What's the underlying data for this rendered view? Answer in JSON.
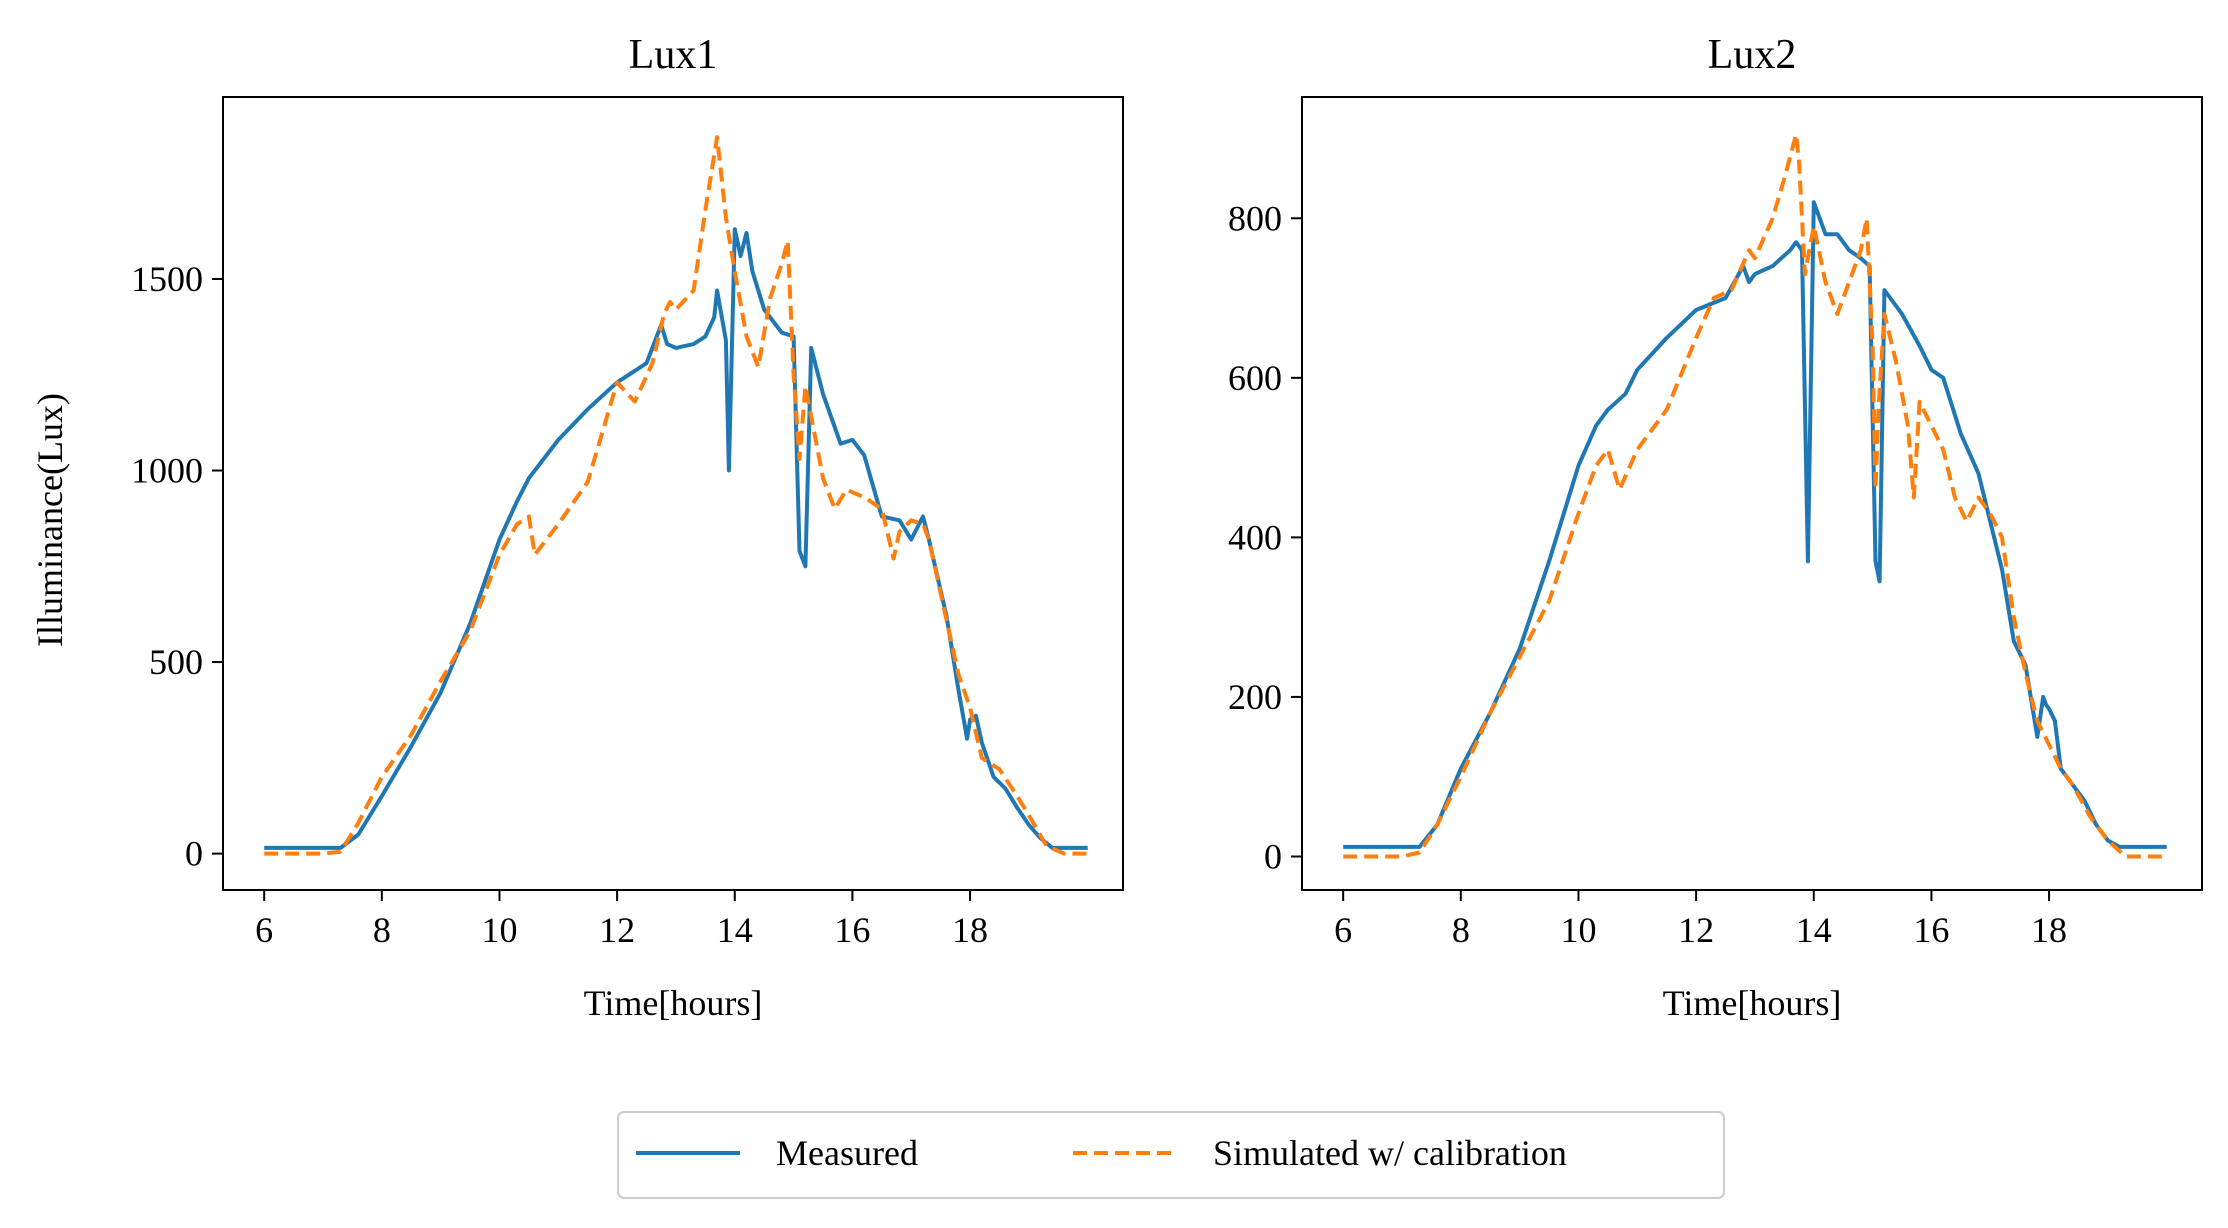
{
  "legend": {
    "measured_label": "Measured",
    "simulated_label": "Simulated w/ calibration",
    "placement": "bottom-center"
  },
  "colors": {
    "measured": "#1f77b4",
    "simulated": "#ff7f0e"
  },
  "chart_data": [
    {
      "type": "line",
      "title": "Lux1",
      "xlabel": "Time[hours]",
      "ylabel": "Illuminance(Lux)",
      "xlim": [
        5.3,
        20.6
      ],
      "ylim": [
        -95,
        1975
      ],
      "xticks": [
        6,
        8,
        10,
        12,
        14,
        16,
        18
      ],
      "yticks": [
        0,
        500,
        1000,
        1500
      ],
      "grid": false,
      "series": [
        {
          "name": "Measured",
          "style": "solid",
          "x": [
            6.0,
            7.0,
            7.3,
            7.6,
            8.0,
            8.5,
            9.0,
            9.5,
            10.0,
            10.3,
            10.5,
            11.0,
            11.5,
            12.0,
            12.5,
            12.75,
            12.85,
            13.0,
            13.3,
            13.5,
            13.65,
            13.7,
            13.85,
            13.9,
            14.0,
            14.1,
            14.2,
            14.3,
            14.5,
            14.8,
            15.0,
            15.1,
            15.2,
            15.3,
            15.5,
            15.8,
            16.0,
            16.2,
            16.5,
            16.8,
            17.0,
            17.2,
            17.3,
            17.6,
            17.8,
            17.95,
            18.0,
            18.1,
            18.2,
            18.4,
            18.6,
            18.8,
            19.0,
            19.2,
            19.4,
            20.0
          ],
          "y": [
            15,
            15,
            15,
            50,
            150,
            280,
            420,
            600,
            820,
            920,
            980,
            1080,
            1160,
            1230,
            1280,
            1380,
            1330,
            1320,
            1330,
            1350,
            1400,
            1470,
            1340,
            1000,
            1630,
            1560,
            1620,
            1520,
            1420,
            1360,
            1350,
            790,
            750,
            1320,
            1200,
            1070,
            1080,
            1040,
            880,
            870,
            820,
            880,
            820,
            620,
            430,
            300,
            350,
            360,
            290,
            200,
            170,
            120,
            75,
            40,
            15,
            15
          ]
        },
        {
          "name": "Simulated w/ calibration",
          "style": "dashed",
          "x": [
            6.0,
            7.0,
            7.3,
            7.6,
            8.0,
            8.5,
            9.0,
            9.5,
            10.0,
            10.3,
            10.5,
            10.6,
            11.0,
            11.5,
            12.0,
            12.3,
            12.6,
            12.8,
            12.9,
            13.0,
            13.3,
            13.5,
            13.7,
            13.75,
            13.85,
            14.0,
            14.2,
            14.4,
            14.6,
            14.8,
            14.9,
            15.0,
            15.1,
            15.2,
            15.5,
            15.7,
            15.9,
            16.2,
            16.5,
            16.7,
            16.8,
            17.0,
            17.2,
            17.3,
            17.5,
            17.8,
            18.0,
            18.2,
            18.5,
            18.8,
            19.0,
            19.3,
            19.6,
            20.0
          ],
          "y": [
            0,
            0,
            5,
            80,
            200,
            310,
            450,
            580,
            780,
            860,
            880,
            780,
            860,
            970,
            1230,
            1180,
            1280,
            1410,
            1440,
            1420,
            1470,
            1680,
            1870,
            1800,
            1660,
            1520,
            1350,
            1270,
            1450,
            1540,
            1600,
            1250,
            1030,
            1220,
            980,
            900,
            950,
            930,
            900,
            770,
            840,
            870,
            860,
            820,
            680,
            470,
            380,
            250,
            220,
            150,
            100,
            20,
            0,
            0
          ]
        }
      ]
    },
    {
      "type": "line",
      "title": "Lux2",
      "xlabel": "Time[hours]",
      "ylabel": "",
      "xlim": [
        5.3,
        20.6
      ],
      "ylim": [
        -42,
        952
      ],
      "xticks": [
        6,
        8,
        10,
        12,
        14,
        16,
        18
      ],
      "yticks": [
        0,
        200,
        400,
        600,
        800
      ],
      "grid": false,
      "series": [
        {
          "name": "Measured",
          "style": "solid",
          "x": [
            6.0,
            7.0,
            7.3,
            7.6,
            8.0,
            8.5,
            9.0,
            9.5,
            10.0,
            10.3,
            10.5,
            10.8,
            11.0,
            11.5,
            12.0,
            12.5,
            12.8,
            12.9,
            13.0,
            13.3,
            13.6,
            13.7,
            13.8,
            13.9,
            14.0,
            14.2,
            14.4,
            14.6,
            14.8,
            14.95,
            15.05,
            15.12,
            15.2,
            15.3,
            15.5,
            15.8,
            16.0,
            16.2,
            16.5,
            16.8,
            17.0,
            17.2,
            17.4,
            17.6,
            17.8,
            17.9,
            17.95,
            18.0,
            18.1,
            18.2,
            18.4,
            18.6,
            18.8,
            19.0,
            19.2,
            20.0
          ],
          "y": [
            12,
            12,
            12,
            40,
            110,
            180,
            260,
            370,
            490,
            540,
            560,
            580,
            610,
            650,
            685,
            700,
            740,
            720,
            730,
            740,
            760,
            770,
            760,
            370,
            820,
            780,
            780,
            760,
            750,
            740,
            370,
            345,
            710,
            700,
            680,
            640,
            610,
            600,
            530,
            480,
            420,
            360,
            270,
            240,
            150,
            200,
            190,
            185,
            170,
            110,
            90,
            70,
            40,
            20,
            12,
            12
          ]
        },
        {
          "name": "Simulated w/ calibration",
          "style": "dashed",
          "x": [
            6.0,
            7.0,
            7.3,
            7.6,
            8.0,
            8.5,
            9.0,
            9.5,
            10.0,
            10.3,
            10.5,
            10.7,
            11.0,
            11.5,
            12.0,
            12.3,
            12.6,
            12.9,
            13.0,
            13.3,
            13.5,
            13.7,
            13.75,
            13.85,
            14.0,
            14.2,
            14.4,
            14.6,
            14.8,
            14.9,
            15.0,
            15.05,
            15.1,
            15.2,
            15.4,
            15.6,
            15.7,
            15.8,
            16.0,
            16.2,
            16.4,
            16.6,
            16.8,
            17.0,
            17.2,
            17.4,
            17.6,
            17.8,
            18.0,
            18.2,
            18.4,
            18.7,
            19.0,
            19.3,
            19.6,
            20.0
          ],
          "y": [
            0,
            0,
            5,
            40,
            100,
            180,
            250,
            320,
            430,
            490,
            510,
            460,
            510,
            560,
            650,
            700,
            710,
            760,
            750,
            800,
            850,
            905,
            870,
            730,
            790,
            720,
            680,
            720,
            760,
            800,
            640,
            460,
            560,
            680,
            620,
            540,
            450,
            570,
            540,
            510,
            450,
            420,
            450,
            430,
            400,
            300,
            230,
            170,
            140,
            110,
            90,
            50,
            20,
            0,
            0,
            0
          ]
        }
      ]
    }
  ]
}
